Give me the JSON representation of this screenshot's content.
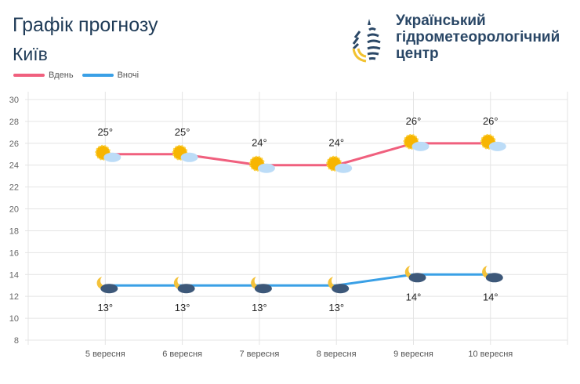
{
  "header": {
    "title": "Графік прогнозу",
    "city": "Київ"
  },
  "organization": {
    "name_lines": [
      "Український",
      "гідрометеорологічний",
      "центр"
    ]
  },
  "colors": {
    "day": "#f0607e",
    "night": "#3aa0e6",
    "title": "#1f3b57"
  },
  "chart_data": {
    "type": "line",
    "categories": [
      "5 вересня",
      "6 вересня",
      "7 вересня",
      "8 вересня",
      "9 вересня",
      "10 вересня"
    ],
    "series": [
      {
        "name": "Вдень",
        "values": [
          25,
          25,
          24,
          24,
          26,
          26
        ],
        "labels": [
          "25°",
          "25°",
          "24°",
          "24°",
          "26°",
          "26°"
        ],
        "icon": "sun-behind-cloud-icon"
      },
      {
        "name": "Вночі",
        "values": [
          13,
          13,
          13,
          13,
          14,
          14
        ],
        "labels": [
          "13°",
          "13°",
          "13°",
          "13°",
          "14°",
          "14°"
        ],
        "icon": "moon-behind-cloud-icon"
      }
    ],
    "ylim": [
      8,
      30
    ],
    "yticks": [
      "30",
      "28",
      "26",
      "24",
      "22",
      "20",
      "18",
      "16",
      "14",
      "12",
      "10",
      "8"
    ],
    "grid": true,
    "legend": "top-left"
  }
}
